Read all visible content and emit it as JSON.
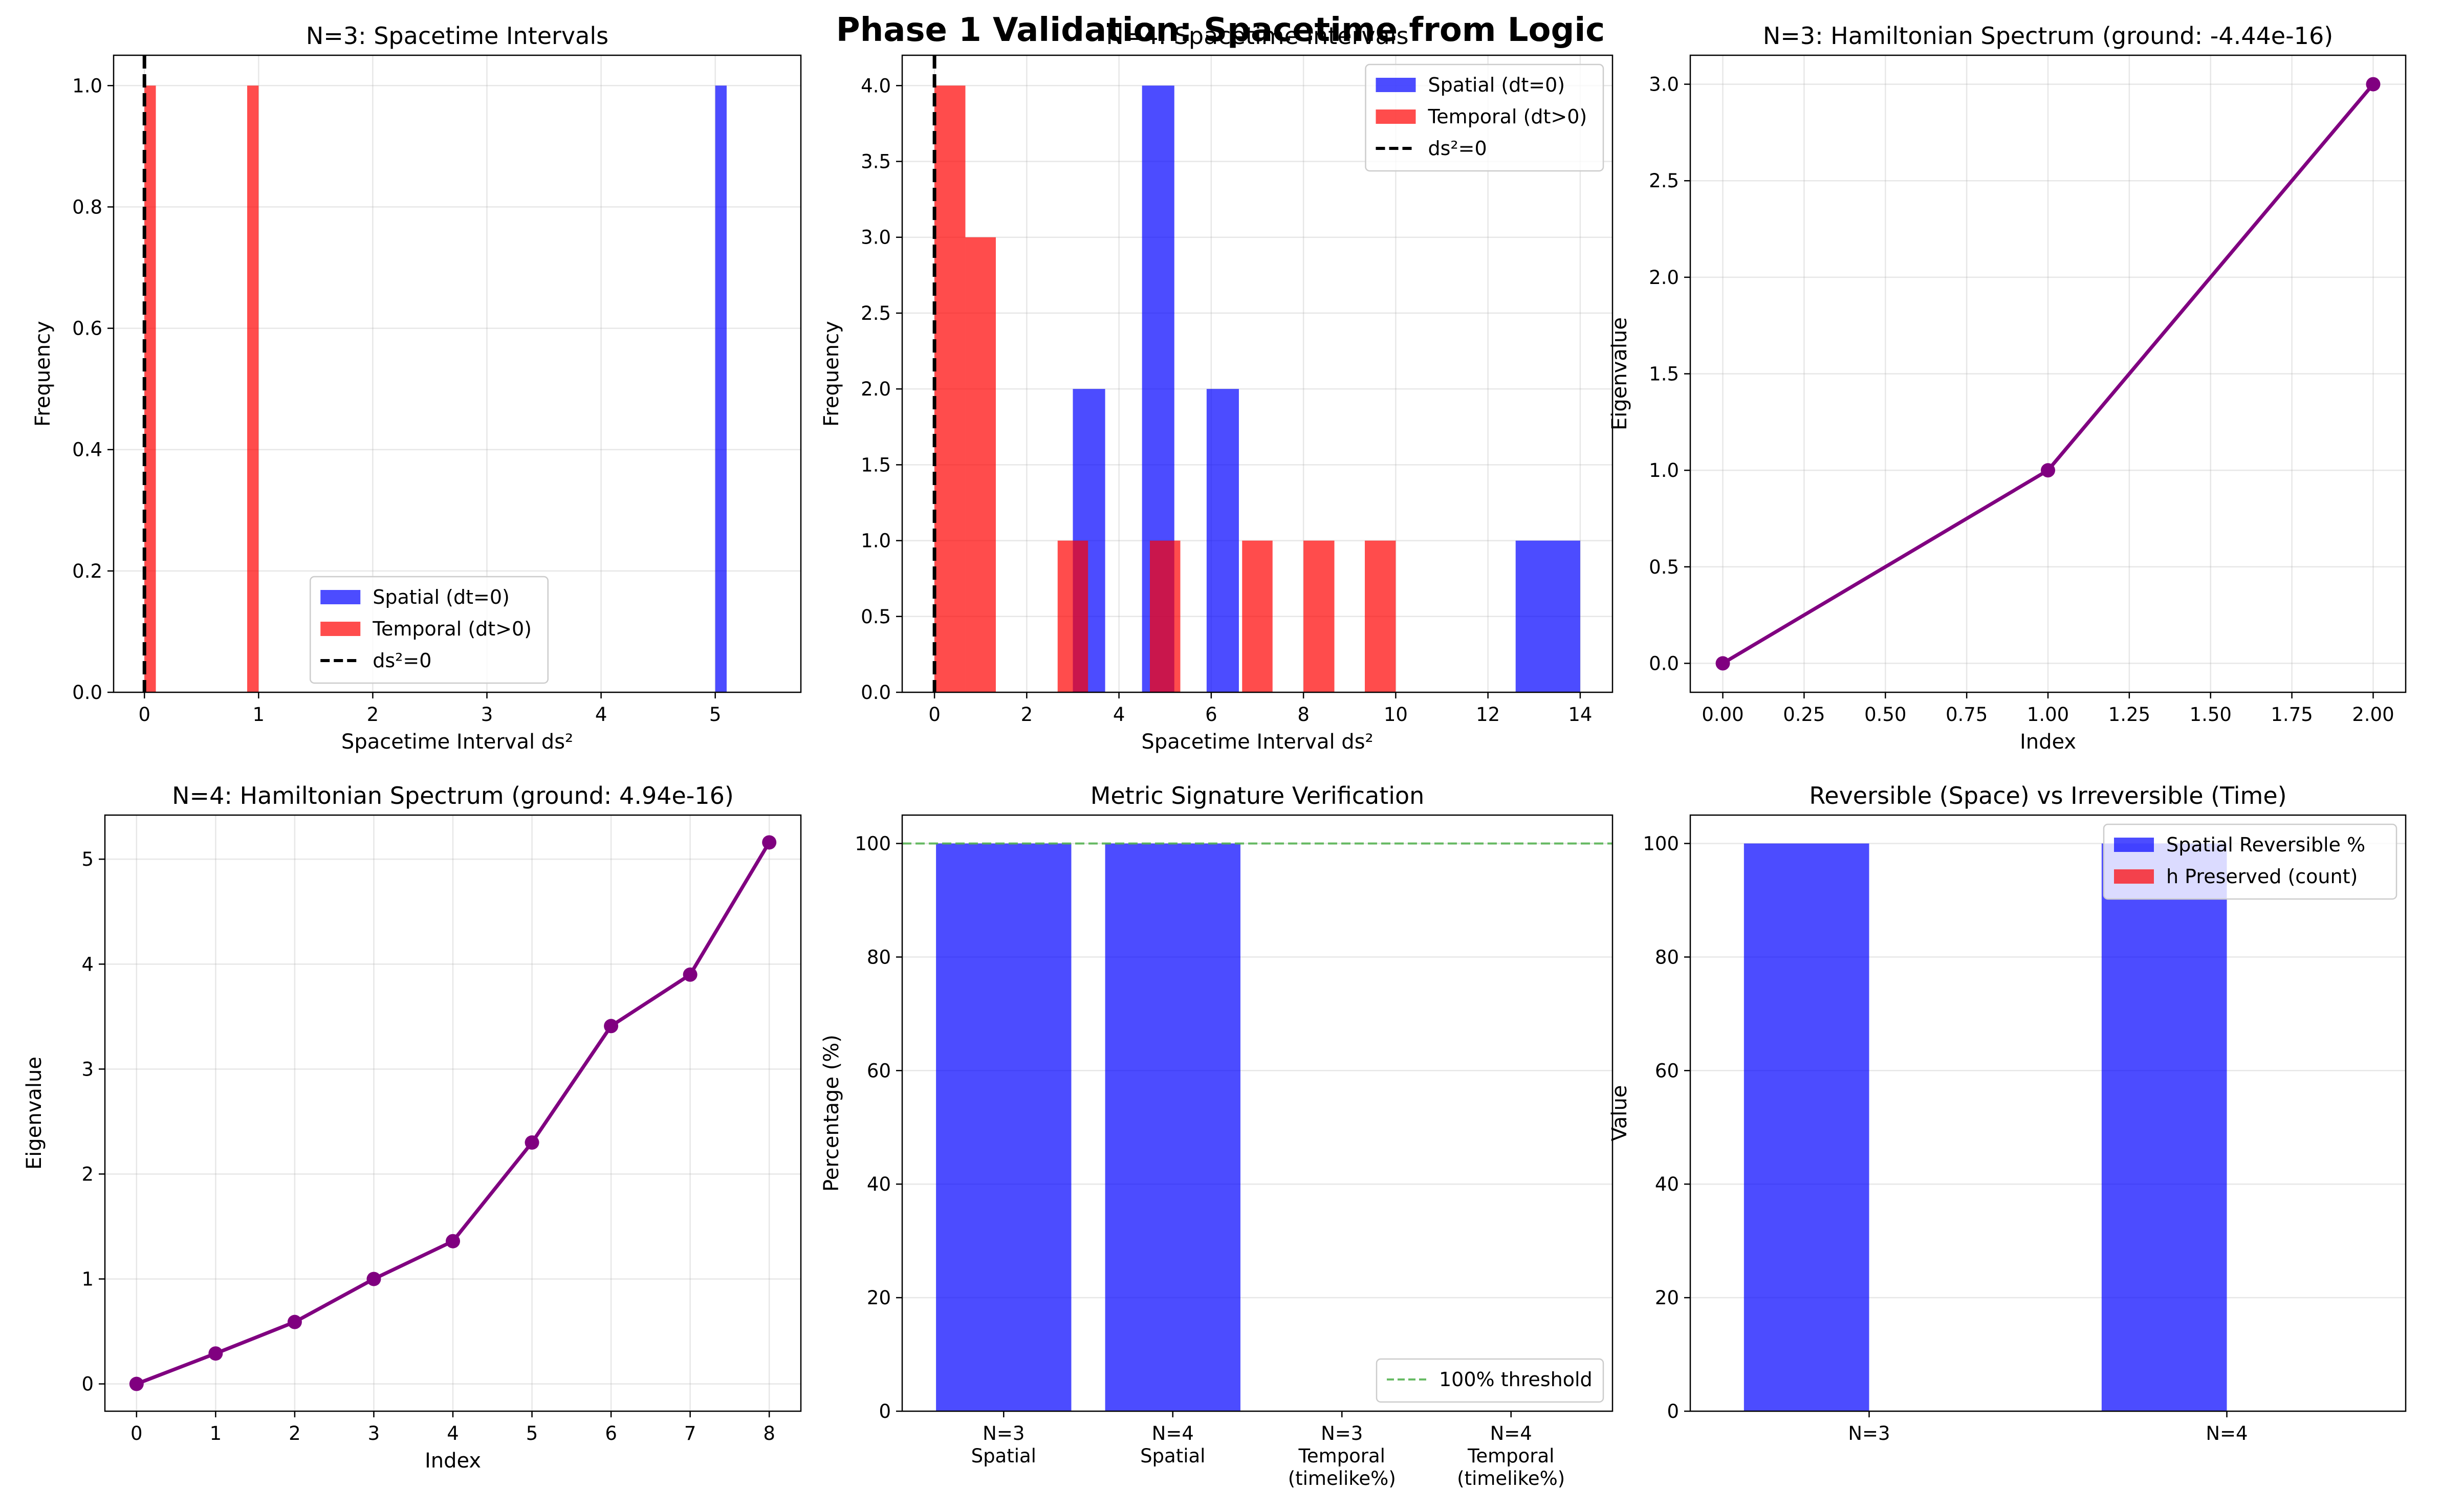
{
  "figure": {
    "suptitle": "Phase 1 Validation: Spacetime from Logic"
  },
  "colors": {
    "spatial": "#0000ff",
    "temporal": "#ff0000",
    "eigen": "#800080",
    "threshold": "#4daf4a"
  },
  "chart_data": [
    {
      "type": "bar",
      "subtype": "histogram",
      "title": "N=3: Spacetime Intervals",
      "xlabel": "Spacetime Interval ds²",
      "ylabel": "Frequency",
      "xlim": [
        -0.27,
        5.75
      ],
      "ylim": [
        0,
        1.05
      ],
      "xticks": [
        0,
        1,
        2,
        3,
        4,
        5
      ],
      "yticks": [
        0.0,
        0.2,
        0.4,
        0.6,
        0.8,
        1.0
      ],
      "legend_position": "lower-center",
      "series": [
        {
          "name": "Spatial (dt=0)",
          "color": "#0000ff",
          "bins": [
            {
              "x0": 5.0,
              "x1": 5.1,
              "count": 1
            }
          ]
        },
        {
          "name": "Temporal (dt>0)",
          "color": "#ff0000",
          "bins": [
            {
              "x0": 0.0,
              "x1": 0.1,
              "count": 1
            },
            {
              "x0": 0.9,
              "x1": 1.0,
              "count": 1
            }
          ]
        }
      ],
      "vlines": [
        {
          "name": "ds²=0",
          "x": 0
        }
      ]
    },
    {
      "type": "bar",
      "subtype": "histogram",
      "title": "N=4: Spacetime Intervals",
      "xlabel": "Spacetime Interval ds²",
      "ylabel": "Frequency",
      "xlim": [
        -0.7,
        14.7
      ],
      "ylim": [
        0,
        4.2
      ],
      "xticks": [
        0,
        2,
        4,
        6,
        8,
        10,
        12,
        14
      ],
      "yticks": [
        0.0,
        0.5,
        1.0,
        1.5,
        2.0,
        2.5,
        3.0,
        3.5,
        4.0
      ],
      "legend_position": "upper-right",
      "series": [
        {
          "name": "Spatial (dt=0)",
          "color": "#0000ff",
          "bins": [
            {
              "x0": 3.0,
              "x1": 3.7,
              "count": 2
            },
            {
              "x0": 4.5,
              "x1": 5.2,
              "count": 4
            },
            {
              "x0": 5.9,
              "x1": 6.6,
              "count": 2
            },
            {
              "x0": 12.6,
              "x1": 14.0,
              "count": 1
            }
          ]
        },
        {
          "name": "Temporal (dt>0)",
          "color": "#ff0000",
          "bins": [
            {
              "x0": 0.0,
              "x1": 0.67,
              "count": 4
            },
            {
              "x0": 0.67,
              "x1": 1.33,
              "count": 3
            },
            {
              "x0": 2.67,
              "x1": 3.33,
              "count": 1
            },
            {
              "x0": 4.67,
              "x1": 5.33,
              "count": 1
            },
            {
              "x0": 6.67,
              "x1": 7.33,
              "count": 1
            },
            {
              "x0": 8.0,
              "x1": 8.67,
              "count": 1
            },
            {
              "x0": 9.33,
              "x1": 10.0,
              "count": 1
            }
          ]
        }
      ],
      "vlines": [
        {
          "name": "ds²=0",
          "x": 0
        }
      ]
    },
    {
      "type": "line",
      "title": "N=3: Hamiltonian Spectrum (ground: -4.44e-16)",
      "xlabel": "Index",
      "ylabel": "Eigenvalue",
      "xlim": [
        -0.1,
        2.1
      ],
      "ylim": [
        -0.15,
        3.15
      ],
      "xticks": [
        0.0,
        0.25,
        0.5,
        0.75,
        1.0,
        1.25,
        1.5,
        1.75,
        2.0
      ],
      "xtick_labels": [
        "0.00",
        "0.25",
        "0.50",
        "0.75",
        "1.00",
        "1.25",
        "1.50",
        "1.75",
        "2.00"
      ],
      "yticks": [
        0.0,
        0.5,
        1.0,
        1.5,
        2.0,
        2.5,
        3.0
      ],
      "x": [
        0,
        1,
        2
      ],
      "y": [
        0,
        1,
        3
      ]
    },
    {
      "type": "line",
      "title": "N=4: Hamiltonian Spectrum (ground: 4.94e-16)",
      "xlabel": "Index",
      "ylabel": "Eigenvalue",
      "xlim": [
        -0.4,
        8.4
      ],
      "ylim": [
        -0.26,
        5.42
      ],
      "xticks": [
        0,
        1,
        2,
        3,
        4,
        5,
        6,
        7,
        8
      ],
      "yticks": [
        0,
        1,
        2,
        3,
        4,
        5
      ],
      "x": [
        0,
        1,
        2,
        3,
        4,
        5,
        6,
        7,
        8
      ],
      "y": [
        0,
        0.29,
        0.59,
        1.0,
        1.36,
        2.3,
        3.41,
        3.9,
        5.16
      ]
    },
    {
      "type": "bar",
      "title": "Metric Signature Verification",
      "xlabel": "",
      "ylabel": "Percentage (%)",
      "ylim": [
        0,
        105
      ],
      "yticks": [
        0,
        20,
        40,
        60,
        80,
        100
      ],
      "categories": [
        "N=3\nSpatial",
        "N=4\nSpatial",
        "N=3\nTemporal\n(timelike%)",
        "N=4\nTemporal\n(timelike%)"
      ],
      "values": [
        100,
        100,
        0,
        0
      ],
      "color": "#0000ff",
      "threshold": {
        "name": "100% threshold",
        "y": 100
      },
      "legend_position": "lower-right"
    },
    {
      "type": "bar",
      "title": "Reversible (Space) vs Irreversible (Time)",
      "xlabel": "",
      "ylabel": "Value",
      "ylim": [
        0,
        105
      ],
      "yticks": [
        0,
        20,
        40,
        60,
        80,
        100
      ],
      "categories": [
        "N=3",
        "N=4"
      ],
      "series": [
        {
          "name": "Spatial Reversible %",
          "color": "#0000ff",
          "values": [
            100,
            100
          ]
        },
        {
          "name": "h Preserved (count)",
          "color": "#ff0000",
          "values": [
            0,
            0
          ]
        }
      ],
      "legend_position": "upper-right"
    }
  ]
}
